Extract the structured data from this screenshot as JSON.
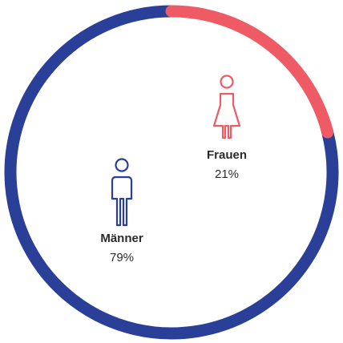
{
  "chart_data": {
    "type": "donut",
    "categories": [
      "Frauen",
      "Männer"
    ],
    "values": [
      21,
      79
    ],
    "value_labels": [
      "21%",
      "79%"
    ],
    "colors": [
      "#ef5b64",
      "#2a3f98"
    ]
  }
}
